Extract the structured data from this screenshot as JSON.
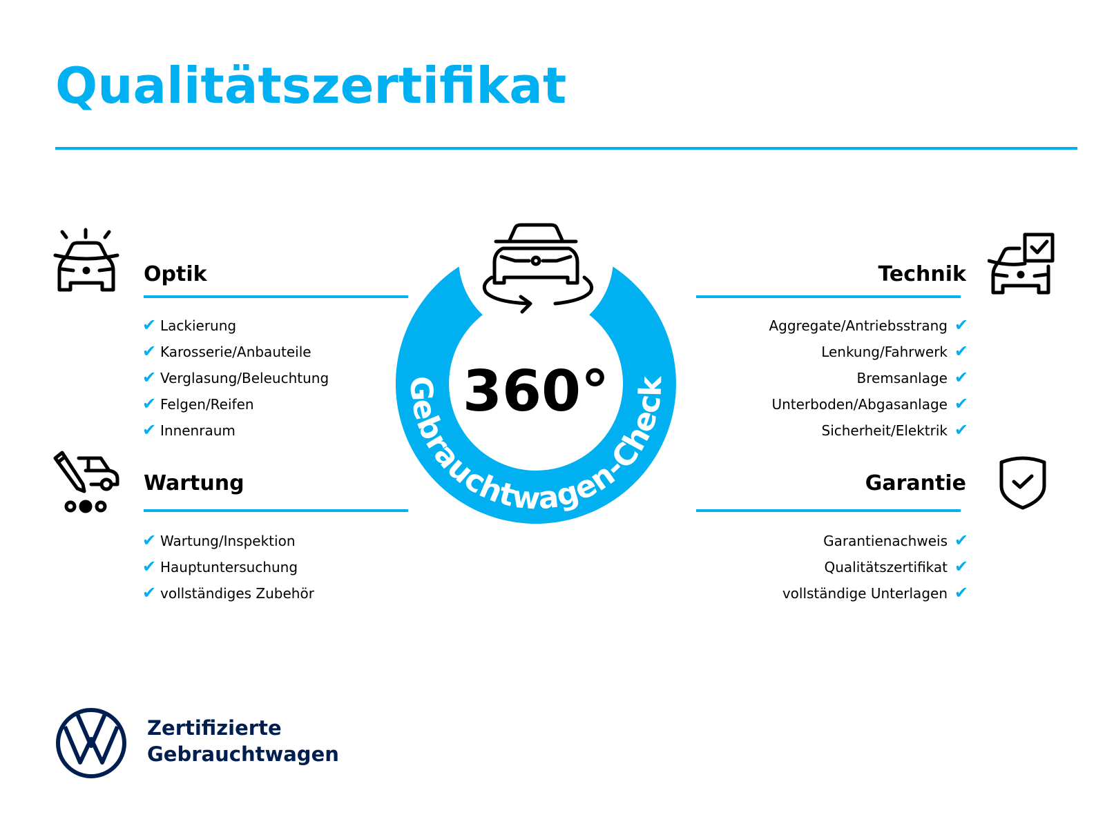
{
  "title": "Qualitätszertifikat",
  "accent_color": "#00b0f0",
  "brand_color": "#001e50",
  "center": {
    "degrees": "360°",
    "ring_text": "Gebrauchtwagen-Check",
    "icon": "car-rotate-icon"
  },
  "sections": {
    "optik": {
      "title": "Optik",
      "icon": "car-light-icon",
      "items": [
        "Lackierung",
        "Karosserie/Anbauteile",
        "Verglasung/Beleuchtung",
        "Felgen/Reifen",
        "Innenraum"
      ]
    },
    "wartung": {
      "title": "Wartung",
      "icon": "service-van-icon",
      "items": [
        "Wartung/Inspektion",
        "Hauptuntersuchung",
        "vollständiges Zubehör"
      ]
    },
    "technik": {
      "title": "Technik",
      "icon": "car-checkbox-icon",
      "items": [
        "Aggregate/Antriebsstrang",
        "Lenkung/Fahrwerk",
        "Bremsanlage",
        "Unterboden/Abgasanlage",
        "Sicherheit/Elektrik"
      ]
    },
    "garantie": {
      "title": "Garantie",
      "icon": "shield-check-icon",
      "items": [
        "Garantienachweis",
        "Qualitätszertifikat",
        "vollständige Unterlagen"
      ]
    }
  },
  "check_glyph": "✔",
  "footer": {
    "line1": "Zertifizierte",
    "line2": "Gebrauchtwagen",
    "logo": "vw-logo"
  }
}
